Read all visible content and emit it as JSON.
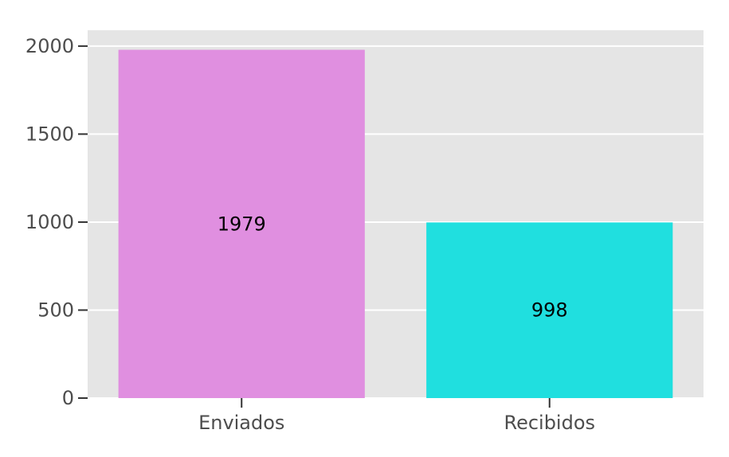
{
  "chart_data": {
    "type": "bar",
    "title": "",
    "xlabel": "",
    "ylabel": "",
    "categories": [
      "Enviados",
      "Recibidos"
    ],
    "values": [
      1979,
      998
    ],
    "data_labels": [
      "1979",
      "998"
    ],
    "bar_colors": [
      "#e08fe0",
      "#20dfdf"
    ],
    "ylim": [
      0,
      2090
    ],
    "yticks": [
      0,
      500,
      1000,
      1500,
      2000
    ],
    "ytick_labels": [
      "0",
      "500",
      "1000",
      "1500",
      "2000"
    ],
    "grid": true,
    "legend": "none",
    "panel_color": "#e5e5e5",
    "grid_color": "#ffffff"
  }
}
